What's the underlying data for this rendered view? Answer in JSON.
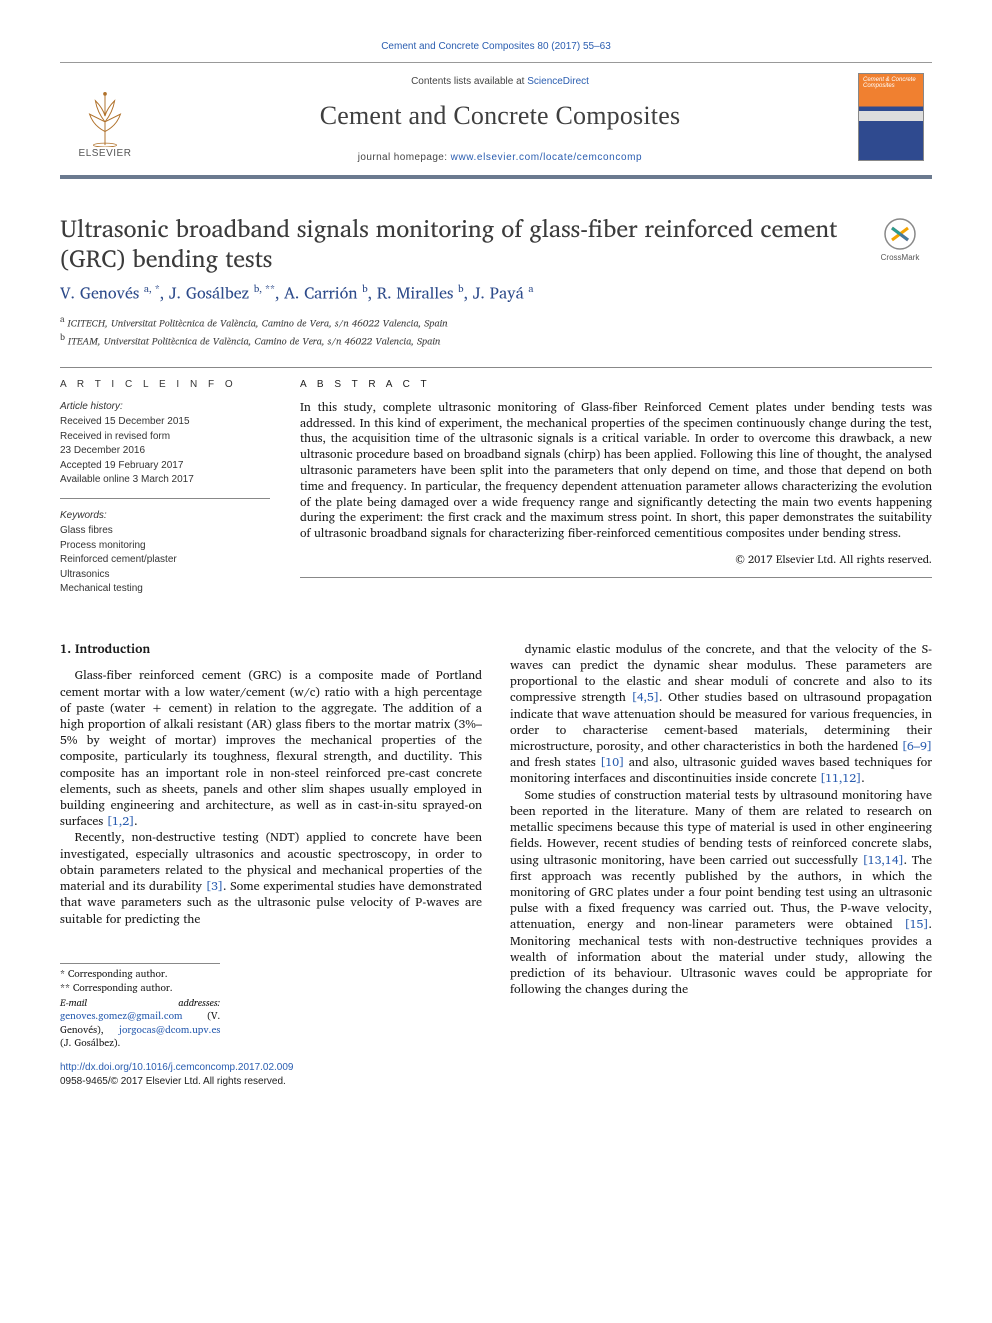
{
  "citation": "Cement and Concrete Composites 80 (2017) 55–63",
  "masthead": {
    "contents_prefix": "Contents lists available at ",
    "contents_link_text": "ScienceDirect",
    "journal_name": "Cement and Concrete Composites",
    "homepage_prefix": "journal homepage: ",
    "homepage_url": "www.elsevier.com/locate/cemconcomp",
    "publisher_label": "ELSEVIER",
    "cover_text": "Cement & Concrete Composites"
  },
  "crossmark_label": "CrossMark",
  "article": {
    "title": "Ultrasonic broadband signals monitoring of glass-fiber reinforced cement (GRC) bending tests",
    "authors_html": "V. Genovés <sup>a, *</sup>, J. Gosálbez <sup>b, **</sup>, A. Carrión <sup>b</sup>, R. Miralles <sup>b</sup>, J. Payá <sup>a</sup>",
    "affiliations": [
      {
        "label": "a",
        "text": "ICITECH, Universitat Politècnica de València, Camino de Vera, s/n 46022 Valencia, Spain"
      },
      {
        "label": "b",
        "text": "ITEAM, Universitat Politècnica de València, Camino de Vera, s/n 46022 Valencia, Spain"
      }
    ]
  },
  "article_info": {
    "heading": "A R T I C L E   I N F O",
    "history_label": "Article history:",
    "history": [
      "Received 15 December 2015",
      "Received in revised form",
      "23 December 2016",
      "Accepted 19 February 2017",
      "Available online 3 March 2017"
    ],
    "keywords_label": "Keywords:",
    "keywords": [
      "Glass fibres",
      "Process monitoring",
      "Reinforced cement/plaster",
      "Ultrasonics",
      "Mechanical testing"
    ]
  },
  "abstract": {
    "heading": "A B S T R A C T",
    "text": "In this study, complete ultrasonic monitoring of Glass-fiber Reinforced Cement plates under bending tests was addressed. In this kind of experiment, the mechanical properties of the specimen continuously change during the test, thus, the acquisition time of the ultrasonic signals is a critical variable. In order to overcome this drawback, a new ultrasonic procedure based on broadband signals (chirp) has been applied. Following this line of thought, the analysed ultrasonic parameters have been split into the parameters that only depend on time, and those that depend on both time and frequency. In particular, the frequency dependent attenuation parameter allows characterizing the evolution of the plate being damaged over a wide frequency range and significantly detecting the main two events happening during the experiment: the first crack and the maximum stress point. In short, this paper demonstrates the suitability of ultrasonic broadband signals for characterizing fiber-reinforced cementitious composites under bending stress.",
    "copyright": "© 2017 Elsevier Ltd. All rights reserved."
  },
  "body": {
    "section_heading": "1. Introduction",
    "col1": [
      "Glass-fiber reinforced cement (GRC) is a composite made of Portland cement mortar with a low water/cement (w/c) ratio with a high percentage of paste (water + cement) in relation to the aggregate. The addition of a high proportion of alkali resistant (AR) glass fibers to the mortar matrix (3%–5% by weight of mortar) improves the mechanical properties of the composite, particularly its toughness, flexural strength, and ductility. This composite has an important role in non-steel reinforced pre-cast concrete elements, such as sheets, panels and other slim shapes usually employed in building engineering and architecture, as well as in cast-in-situ sprayed-on surfaces [1,2].",
      "Recently, non-destructive testing (NDT) applied to concrete have been investigated, especially ultrasonics and acoustic spectroscopy, in order to obtain parameters related to the physical and mechanical properties of the material and its durability [3]. Some experimental studies have demonstrated that wave parameters such as the ultrasonic pulse velocity of P-waves are suitable for predicting the"
    ],
    "col2": [
      "dynamic elastic modulus of the concrete, and that the velocity of the S-waves can predict the dynamic shear modulus. These parameters are proportional to the elastic and shear moduli of concrete and also to its compressive strength [4,5]. Other studies based on ultrasound propagation indicate that wave attenuation should be measured for various frequencies, in order to characterise cement-based materials, determining their microstructure, porosity, and other characteristics in both the hardened [6–9] and fresh states [10] and also, ultrasonic guided waves based techniques for monitoring interfaces and discontinuities inside concrete [11,12].",
      "Some studies of construction material tests by ultrasound monitoring have been reported in the literature. Many of them are related to research on metallic specimens because this type of material is used in other engineering fields. However, recent studies of bending tests of reinforced concrete slabs, using ultrasonic monitoring, have been carried out successfully [13,14]. The first approach was recently published by the authors, in which the monitoring of GRC plates under a four point bending test using an ultrasonic pulse with a fixed frequency was carried out. Thus, the P-wave velocity, attenuation, energy and non-linear parameters were obtained [15]. Monitoring mechanical tests with non-destructive techniques provides a wealth of information about the material under study, allowing the prediction of its behaviour. Ultrasonic waves could be appropriate for following the changes during the"
    ],
    "refs": {
      "r1": "[1,2]",
      "r2": "[3]",
      "r3": "[4,5]",
      "r4": "[6–9]",
      "r5": "[10]",
      "r6": "[11,12]",
      "r7": "[13,14]",
      "r8": "[15]"
    }
  },
  "footnotes": {
    "corr1": "* Corresponding author.",
    "corr2": "** Corresponding author.",
    "email_label": "E-mail addresses:",
    "email1": "genoves.gomez@gmail.com",
    "email1_who": "(V. Genovés),",
    "email2": "jorgocas@dcom.upv.es",
    "email2_who": "(J. Gosálbez)."
  },
  "footer": {
    "doi": "http://dx.doi.org/10.1016/j.cemconcomp.2017.02.009",
    "issn_line": "0958-9465/© 2017 Elsevier Ltd. All rights reserved."
  },
  "colors": {
    "link": "#2a5db0",
    "rule": "#888888",
    "accent_bar": "#6b7a8f",
    "author": "#2c4a8a"
  }
}
